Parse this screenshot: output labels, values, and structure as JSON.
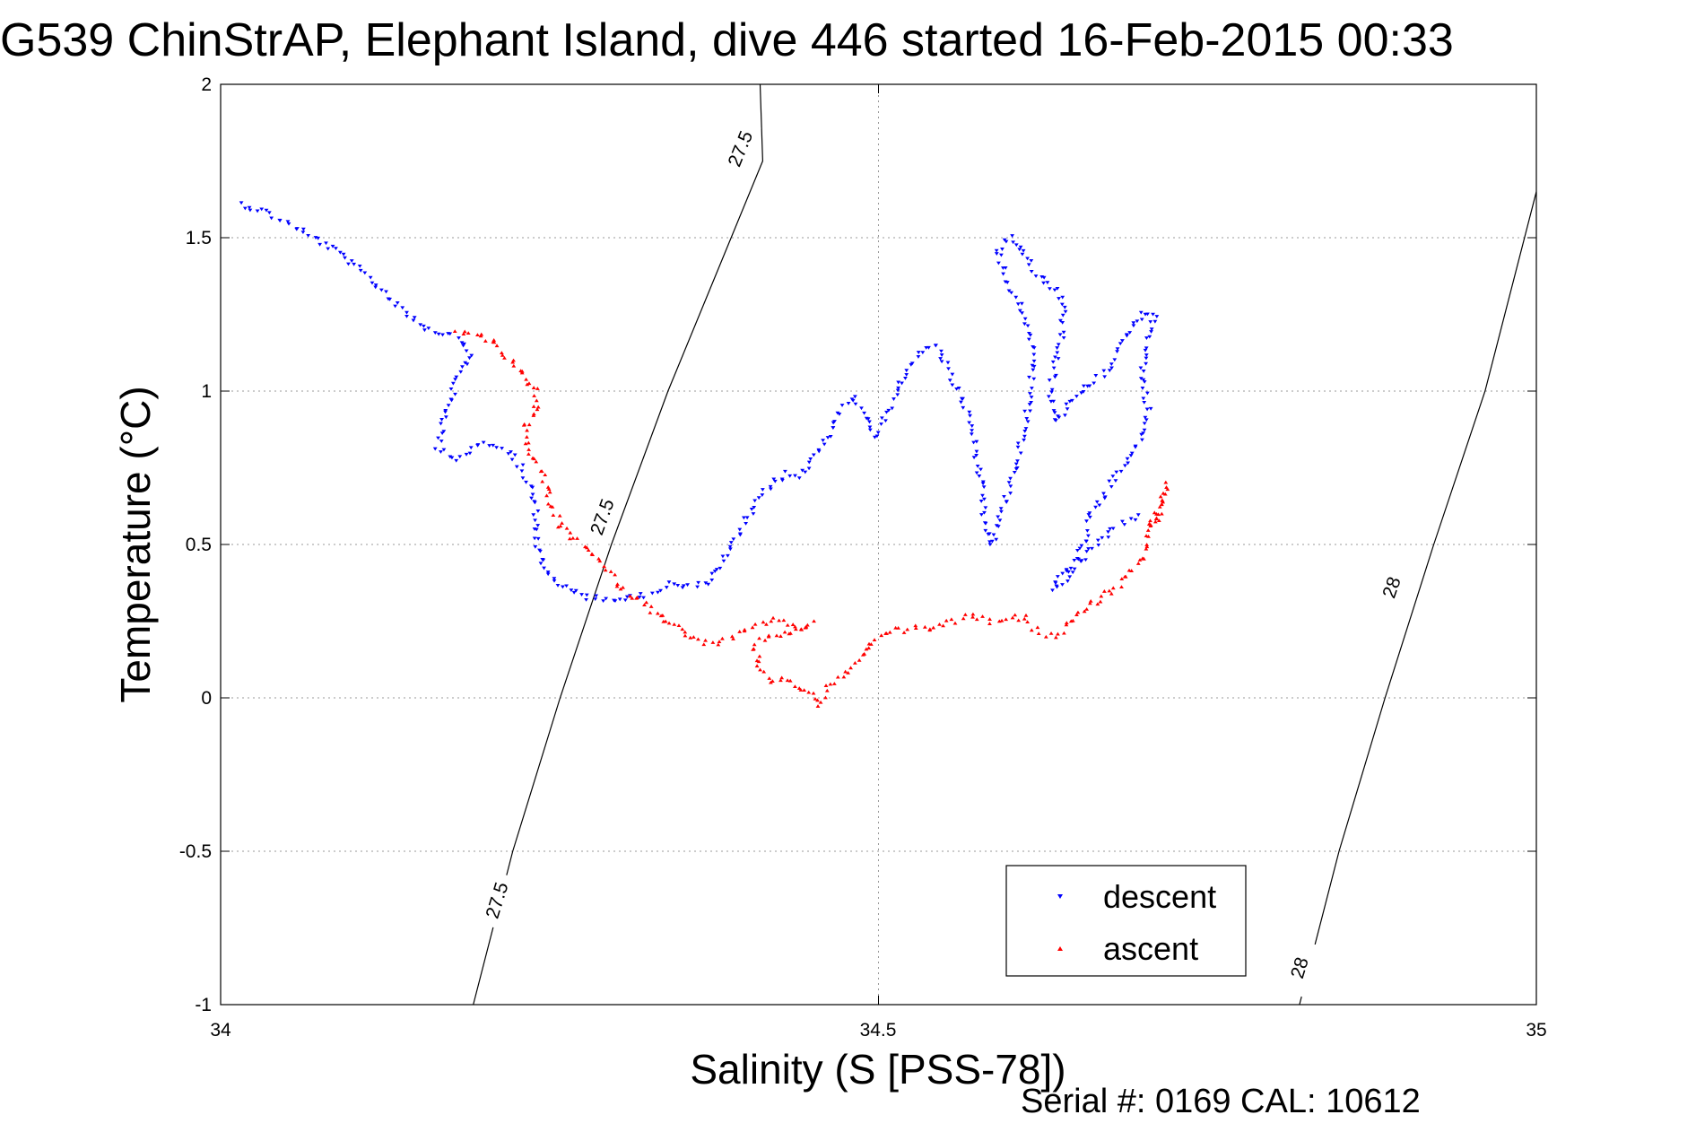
{
  "chart_data": {
    "type": "scatter",
    "title": "G539 ChinStrAP, Elephant Island, dive 446 started 16-Feb-2015 00:33",
    "xlabel": "Salinity (S [PSS-78])",
    "ylabel": "Temperature (°C)",
    "xlim": [
      34,
      35
    ],
    "ylim": [
      -1,
      2
    ],
    "x_ticks": [
      "34",
      "34.5",
      "35"
    ],
    "x_tick_values": [
      34,
      34.5,
      35
    ],
    "y_ticks": [
      "2",
      "1.5",
      "1",
      "0.5",
      "0",
      "-0.5",
      "-1"
    ],
    "y_tick_values": [
      2,
      1.5,
      1,
      0.5,
      0,
      -0.5,
      -1
    ],
    "grid": true,
    "legend_position": "bottom-right",
    "footer": "Serial #: 0169 CAL: 10612",
    "density_contours": [
      {
        "label": "27.5",
        "points": [
          [
            34.192,
            -1.0
          ],
          [
            34.222,
            -0.5
          ],
          [
            34.258,
            0.0
          ],
          [
            34.297,
            0.5
          ],
          [
            34.34,
            1.0
          ],
          [
            34.388,
            1.5
          ],
          [
            34.412,
            1.75
          ],
          [
            34.41,
            2.0
          ]
        ]
      },
      {
        "label": "28",
        "points": [
          [
            34.82,
            -1.0
          ],
          [
            34.85,
            -0.5
          ],
          [
            34.885,
            0.0
          ],
          [
            34.922,
            0.5
          ],
          [
            34.961,
            1.0
          ],
          [
            35.0,
            1.65
          ]
        ]
      }
    ],
    "contour_labels": [
      {
        "text": "27.5",
        "x": 34.21,
        "y": -0.66,
        "angle": -73
      },
      {
        "text": "27.5",
        "x": 34.29,
        "y": 0.59,
        "angle": -70
      },
      {
        "text": "27.5",
        "x": 34.395,
        "y": 1.79,
        "angle": -68
      },
      {
        "text": "28",
        "x": 34.82,
        "y": -0.88,
        "angle": -73
      },
      {
        "text": "28",
        "x": 34.89,
        "y": 0.36,
        "angle": -71
      }
    ],
    "series": [
      {
        "name": "descent",
        "color": "#0000ff",
        "marker": "triangle-down",
        "path": [
          [
            34.015,
            1.61
          ],
          [
            34.03,
            1.59
          ],
          [
            34.05,
            1.55
          ],
          [
            34.07,
            1.5
          ],
          [
            34.09,
            1.45
          ],
          [
            34.11,
            1.38
          ],
          [
            34.13,
            1.3
          ],
          [
            34.145,
            1.24
          ],
          [
            34.16,
            1.2
          ],
          [
            34.18,
            1.18
          ],
          [
            34.19,
            1.12
          ],
          [
            34.18,
            1.05
          ],
          [
            34.175,
            0.98
          ],
          [
            34.17,
            0.9
          ],
          [
            34.165,
            0.82
          ],
          [
            34.18,
            0.78
          ],
          [
            34.2,
            0.83
          ],
          [
            34.22,
            0.8
          ],
          [
            34.235,
            0.7
          ],
          [
            34.24,
            0.6
          ],
          [
            34.24,
            0.5
          ],
          [
            34.245,
            0.43
          ],
          [
            34.255,
            0.38
          ],
          [
            34.265,
            0.35
          ],
          [
            34.28,
            0.33
          ],
          [
            34.3,
            0.32
          ],
          [
            34.32,
            0.33
          ],
          [
            34.33,
            0.35
          ],
          [
            34.34,
            0.37
          ],
          [
            34.36,
            0.36
          ],
          [
            34.37,
            0.38
          ],
          [
            34.38,
            0.43
          ],
          [
            34.39,
            0.5
          ],
          [
            34.4,
            0.58
          ],
          [
            34.41,
            0.65
          ],
          [
            34.42,
            0.7
          ],
          [
            34.43,
            0.73
          ],
          [
            34.44,
            0.72
          ],
          [
            34.45,
            0.78
          ],
          [
            34.46,
            0.85
          ],
          [
            34.47,
            0.92
          ],
          [
            34.48,
            0.98
          ],
          [
            34.49,
            0.92
          ],
          [
            34.495,
            0.85
          ],
          [
            34.5,
            0.87
          ],
          [
            34.51,
            0.95
          ],
          [
            34.52,
            1.05
          ],
          [
            34.53,
            1.12
          ],
          [
            34.545,
            1.15
          ],
          [
            34.55,
            1.1
          ],
          [
            34.56,
            1.0
          ],
          [
            34.57,
            0.9
          ],
          [
            34.575,
            0.78
          ],
          [
            34.578,
            0.68
          ],
          [
            34.58,
            0.58
          ],
          [
            34.585,
            0.5
          ],
          [
            34.59,
            0.55
          ],
          [
            34.6,
            0.7
          ],
          [
            34.61,
            0.85
          ],
          [
            34.615,
            1.0
          ],
          [
            34.62,
            1.12
          ],
          [
            34.61,
            1.25
          ],
          [
            34.6,
            1.35
          ],
          [
            34.59,
            1.45
          ],
          [
            34.6,
            1.5
          ],
          [
            34.61,
            1.45
          ],
          [
            34.62,
            1.38
          ],
          [
            34.63,
            1.35
          ],
          [
            34.64,
            1.3
          ],
          [
            34.64,
            1.2
          ],
          [
            34.635,
            1.1
          ],
          [
            34.63,
            1.0
          ],
          [
            34.635,
            0.9
          ],
          [
            34.645,
            0.95
          ],
          [
            34.655,
            1.0
          ],
          [
            34.67,
            1.05
          ],
          [
            34.68,
            1.12
          ],
          [
            34.69,
            1.2
          ],
          [
            34.7,
            1.25
          ],
          [
            34.71,
            1.26
          ],
          [
            34.705,
            1.15
          ],
          [
            34.7,
            1.05
          ],
          [
            34.705,
            0.95
          ],
          [
            34.7,
            0.85
          ],
          [
            34.69,
            0.78
          ],
          [
            34.68,
            0.72
          ],
          [
            34.67,
            0.65
          ],
          [
            34.66,
            0.6
          ],
          [
            34.66,
            0.52
          ],
          [
            34.65,
            0.45
          ],
          [
            34.64,
            0.4
          ],
          [
            34.63,
            0.36
          ],
          [
            34.64,
            0.37
          ],
          [
            34.66,
            0.48
          ],
          [
            34.68,
            0.56
          ],
          [
            34.7,
            0.6
          ]
        ]
      },
      {
        "name": "ascent",
        "color": "#ff0000",
        "marker": "triangle-up",
        "path": [
          [
            34.018,
            1.61
          ],
          [
            34.18,
            1.19
          ],
          [
            34.2,
            1.18
          ],
          [
            34.21,
            1.15
          ],
          [
            34.22,
            1.1
          ],
          [
            34.23,
            1.05
          ],
          [
            34.24,
            1.0
          ],
          [
            34.24,
            0.93
          ],
          [
            34.23,
            0.88
          ],
          [
            34.235,
            0.8
          ],
          [
            34.245,
            0.72
          ],
          [
            34.25,
            0.65
          ],
          [
            34.255,
            0.6
          ],
          [
            34.26,
            0.55
          ],
          [
            34.27,
            0.52
          ],
          [
            34.28,
            0.48
          ],
          [
            34.29,
            0.44
          ],
          [
            34.3,
            0.38
          ],
          [
            34.31,
            0.34
          ],
          [
            34.32,
            0.31
          ],
          [
            34.33,
            0.28
          ],
          [
            34.34,
            0.25
          ],
          [
            34.35,
            0.22
          ],
          [
            34.36,
            0.19
          ],
          [
            34.37,
            0.18
          ],
          [
            34.38,
            0.18
          ],
          [
            34.39,
            0.2
          ],
          [
            34.4,
            0.22
          ],
          [
            34.41,
            0.24
          ],
          [
            34.42,
            0.25
          ],
          [
            34.43,
            0.24
          ],
          [
            34.44,
            0.23
          ],
          [
            34.45,
            0.24
          ],
          [
            34.405,
            0.18
          ],
          [
            34.41,
            0.1
          ],
          [
            34.42,
            0.05
          ],
          [
            34.43,
            0.06
          ],
          [
            34.44,
            0.03
          ],
          [
            34.45,
            0.01
          ],
          [
            34.455,
            -0.02
          ],
          [
            34.46,
            0.02
          ],
          [
            34.47,
            0.06
          ],
          [
            34.48,
            0.1
          ],
          [
            34.49,
            0.15
          ],
          [
            34.5,
            0.2
          ],
          [
            34.51,
            0.22
          ],
          [
            34.52,
            0.22
          ],
          [
            34.54,
            0.23
          ],
          [
            34.56,
            0.25
          ],
          [
            34.57,
            0.27
          ],
          [
            34.58,
            0.26
          ],
          [
            34.59,
            0.24
          ],
          [
            34.6,
            0.26
          ],
          [
            34.61,
            0.26
          ],
          [
            34.62,
            0.22
          ],
          [
            34.63,
            0.2
          ],
          [
            34.64,
            0.22
          ],
          [
            34.65,
            0.27
          ],
          [
            34.66,
            0.3
          ],
          [
            34.67,
            0.33
          ],
          [
            34.68,
            0.36
          ],
          [
            34.69,
            0.4
          ],
          [
            34.7,
            0.45
          ],
          [
            34.705,
            0.52
          ],
          [
            34.71,
            0.58
          ],
          [
            34.715,
            0.62
          ],
          [
            34.718,
            0.65
          ],
          [
            34.72,
            0.7
          ],
          [
            34.705,
            0.55
          ],
          [
            34.715,
            0.6
          ]
        ]
      }
    ]
  }
}
